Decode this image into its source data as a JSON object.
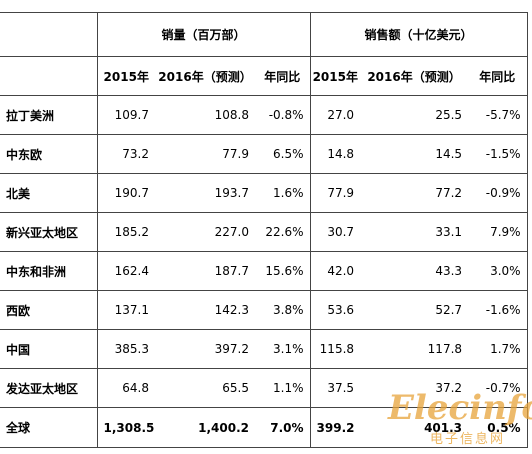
{
  "table": {
    "groups": [
      "销量（百万部）",
      "销售额（十亿美元）"
    ],
    "subheaders": [
      "2015年",
      "2016年（预测）",
      "年同比",
      "2015年",
      "2016年（预测）",
      "年同比"
    ],
    "rows": [
      [
        "拉丁美洲",
        "109.7",
        "108.8",
        "-0.8%",
        "27.0",
        "25.5",
        "-5.7%"
      ],
      [
        "中东欧",
        "73.2",
        "77.9",
        "6.5%",
        "14.8",
        "14.5",
        "-1.5%"
      ],
      [
        "北美",
        "190.7",
        "193.7",
        "1.6%",
        "77.9",
        "77.2",
        "-0.9%"
      ],
      [
        "新兴亚太地区",
        "185.2",
        "227.0",
        "22.6%",
        "30.7",
        "33.1",
        "7.9%"
      ],
      [
        "中东和非洲",
        "162.4",
        "187.7",
        "15.6%",
        "42.0",
        "43.3",
        "3.0%"
      ],
      [
        "西欧",
        "137.1",
        "142.3",
        "3.8%",
        "53.6",
        "52.7",
        "-1.6%"
      ],
      [
        "中国",
        "385.3",
        "397.2",
        "3.1%",
        "115.8",
        "117.8",
        "1.7%"
      ],
      [
        "发达亚太地区",
        "64.8",
        "65.5",
        "1.1%",
        "37.5",
        "37.2",
        "-0.7%"
      ],
      [
        "全球",
        "1,308.5",
        "1,400.2",
        "7.0%",
        "399.2",
        "401.3",
        "0.5%"
      ]
    ]
  },
  "watermark": {
    "logo": "Elecinfo",
    "subtitle": "电子信息网"
  }
}
